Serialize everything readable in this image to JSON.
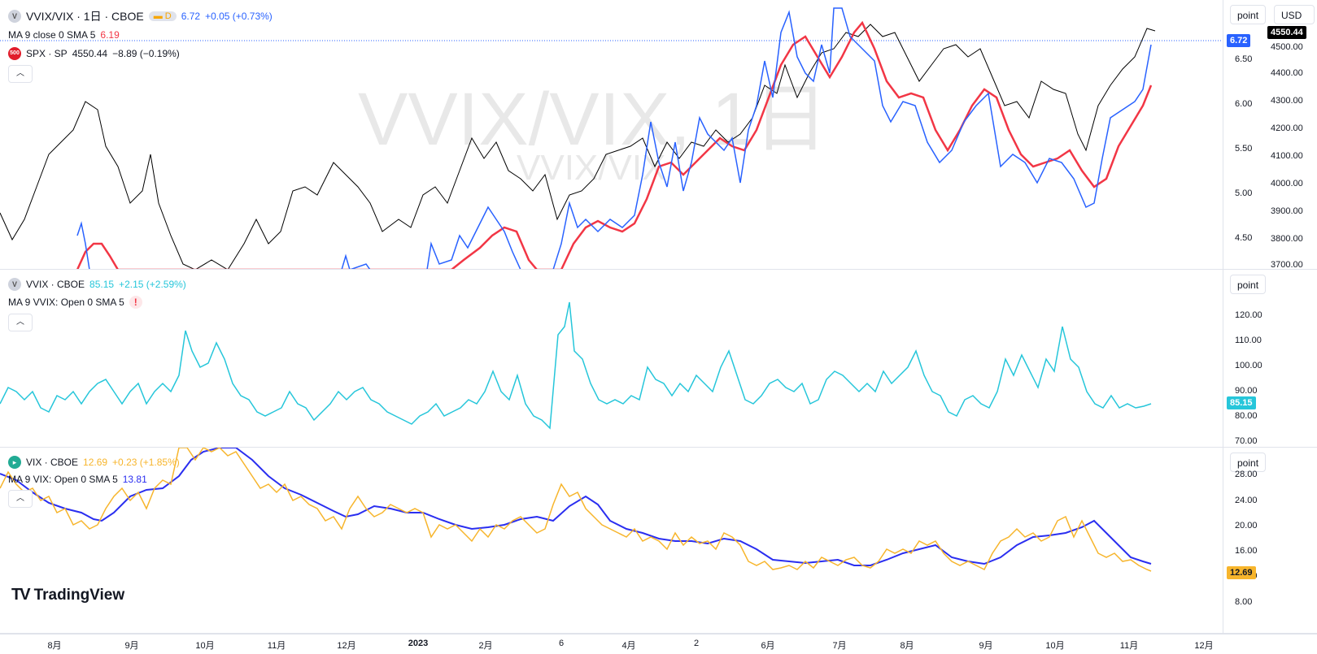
{
  "pane1": {
    "symbol": "VVIX/VIX · 1日 · CBOE",
    "interval_badge": "D",
    "price": "6.72",
    "change": "+0.05 (+0.73%)",
    "ma_label": "MA 9 close 0 SMA 5",
    "ma_value": "6.19",
    "spx_icon": "500",
    "spx_label": "SPX · SP",
    "spx_price": "4550.44",
    "spx_change": "−8.89 (−0.19%)",
    "watermark_big": "VVIX/VIX, 1日",
    "watermark_small": "VVIX/VIX",
    "axis_btn": "point",
    "currency": "USD",
    "left_ticks": [
      "6.50",
      "6.00",
      "5.50",
      "5.00",
      "4.50"
    ],
    "right_ticks": [
      "4500.00",
      "4400.00",
      "4300.00",
      "4200.00",
      "4100.00",
      "4000.00",
      "3900.00",
      "3800.00",
      "3700.00"
    ],
    "tag_price": "6.72",
    "tag_spx": "4550.44",
    "colors": {
      "ratio": "#2962ff",
      "ma": "#f23645",
      "spx": "#000000"
    }
  },
  "pane2": {
    "symbol": "VVIX · CBOE",
    "price": "85.15",
    "change": "+2.15 (+2.59%)",
    "ma_label": "MA 9 VVIX: Open 0 SMA 5",
    "warn": "!",
    "axis_btn": "point",
    "ticks": [
      "120.00",
      "110.00",
      "100.00",
      "90.00",
      "80.00",
      "70.00"
    ],
    "tag": "85.15",
    "color": "#26c6da"
  },
  "pane3": {
    "symbol": "VIX · CBOE",
    "price": "12.69",
    "change": "+0.23 (+1.85%)",
    "ma_label": "MA 9 VIX: Open 0 SMA 5",
    "ma_value": "13.81",
    "axis_btn": "point",
    "ticks": [
      "28.00",
      "24.00",
      "20.00",
      "16.00",
      "12.00",
      "8.00"
    ],
    "tag": "12.69",
    "colors": {
      "vix": "#f7b52c",
      "ma": "#2a2ef0"
    }
  },
  "xaxis": [
    "8月",
    "9月",
    "10月",
    "11月",
    "12月",
    "2023",
    "2月",
    "6",
    "4月",
    "2",
    "6月",
    "7月",
    "8月",
    "9月",
    "10月",
    "11月",
    "12月"
  ],
  "logo": "TradingView"
}
